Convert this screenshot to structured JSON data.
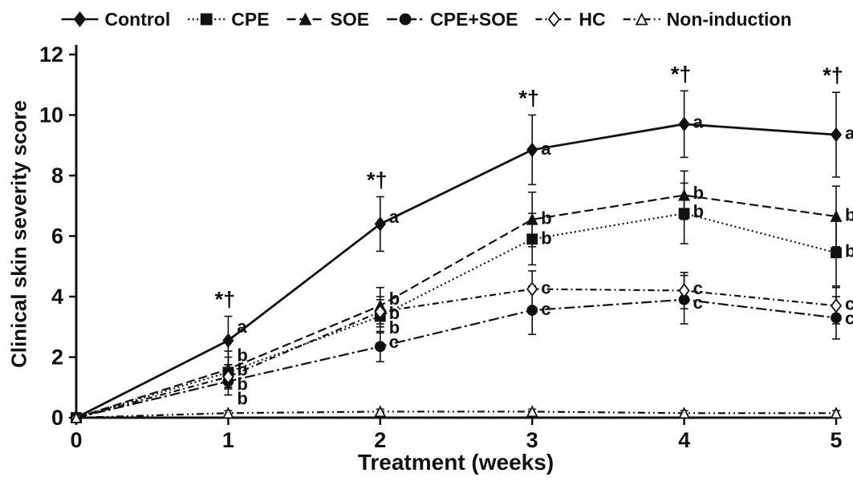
{
  "chart_data": {
    "type": "line",
    "title": "",
    "xlabel": "Treatment (weeks)",
    "ylabel": "Clinical skin severity score",
    "x": [
      0,
      1,
      2,
      3,
      4,
      5
    ],
    "xlim": [
      0,
      5
    ],
    "ylim": [
      0,
      12
    ],
    "xticks": [
      0,
      1,
      2,
      3,
      4,
      5
    ],
    "yticks": [
      0,
      2,
      4,
      6,
      8,
      10,
      12
    ],
    "grid": false,
    "legend_position": "top",
    "line_color": "#111111",
    "background_color": "#ffffff",
    "series": [
      {
        "name": "Control",
        "marker": "diamond",
        "filled": true,
        "dash": "solid",
        "values": [
          0,
          2.55,
          6.4,
          8.85,
          9.7,
          9.35
        ],
        "errors": [
          0,
          0.8,
          0.9,
          1.15,
          1.1,
          1.4
        ],
        "point_labels": [
          "",
          "a",
          "a",
          "a",
          "a",
          "a"
        ]
      },
      {
        "name": "CPE",
        "marker": "square",
        "filled": true,
        "dash": "dotted",
        "values": [
          0,
          1.5,
          3.35,
          5.9,
          6.75,
          5.45
        ],
        "errors": [
          0,
          0.5,
          0.55,
          0.85,
          1.0,
          1.1
        ],
        "point_labels": [
          "",
          "b",
          "b",
          "b",
          "b",
          "b"
        ]
      },
      {
        "name": "SOE",
        "marker": "triangle",
        "filled": true,
        "dash": "dashed",
        "values": [
          0,
          1.6,
          3.7,
          6.55,
          7.35,
          6.65
        ],
        "errors": [
          0,
          0.6,
          0.6,
          0.9,
          0.8,
          1.0
        ],
        "point_labels": [
          "",
          "b",
          "b",
          "b",
          "b",
          "b"
        ]
      },
      {
        "name": "CPE+SOE",
        "marker": "circle",
        "filled": true,
        "dash": "dashdot",
        "values": [
          0,
          1.2,
          2.35,
          3.55,
          3.9,
          3.3
        ],
        "errors": [
          0,
          0.45,
          0.5,
          0.8,
          0.8,
          0.7
        ],
        "point_labels": [
          "",
          "b",
          "c",
          "c",
          "c",
          "c"
        ]
      },
      {
        "name": "HC",
        "marker": "diamond",
        "filled": false,
        "dash": "dashdot2",
        "values": [
          0,
          1.35,
          3.5,
          4.25,
          4.2,
          3.7
        ],
        "errors": [
          0,
          0.4,
          0.5,
          0.6,
          0.6,
          0.6
        ],
        "point_labels": [
          "",
          "b",
          "b",
          "c",
          "c",
          "c"
        ]
      },
      {
        "name": "Non-induction",
        "marker": "triangle",
        "filled": false,
        "dash": "dashdotdot",
        "values": [
          0,
          0.15,
          0.2,
          0.2,
          0.15,
          0.15
        ],
        "errors": [
          0,
          0.08,
          0.08,
          0.08,
          0.08,
          0.08
        ],
        "point_labels": [
          "",
          "",
          "",
          "",
          "",
          ""
        ]
      }
    ],
    "significance_markers": [
      {
        "x": 1,
        "text": "*†"
      },
      {
        "x": 2,
        "text": "*†"
      },
      {
        "x": 3,
        "text": "*†"
      },
      {
        "x": 4,
        "text": "*†"
      },
      {
        "x": 5,
        "text": "*†"
      }
    ]
  }
}
